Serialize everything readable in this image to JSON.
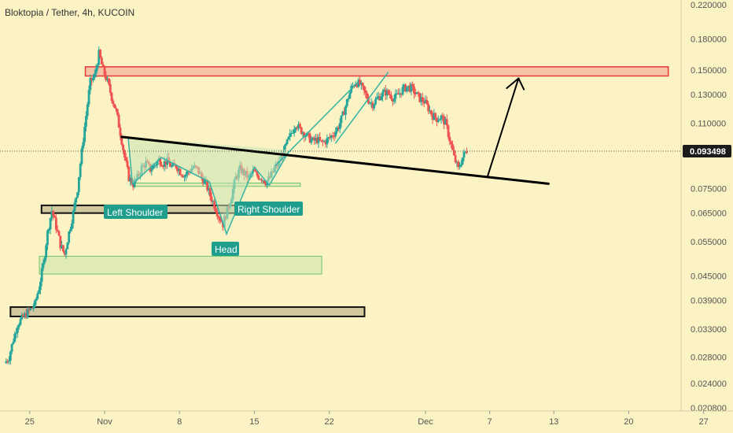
{
  "header": {
    "title": "Bloktopia / Tether, 4h, KUCOIN"
  },
  "colors": {
    "background": "#fbf3c4",
    "candle_up": "#26a69a",
    "candle_down": "#ef5350",
    "resistance_fill": "#f6c4a4",
    "resistance_stroke": "#e53935",
    "support_fill": "#dfeab4",
    "support_stroke": "#6cc46c",
    "dark_zone_fill": "#d2c89e",
    "pattern_line": "#34b3a4",
    "label_bg": "#1f9e8e"
  },
  "chart_data": {
    "type": "candlestick",
    "symbol": "Bloktopia / Tether",
    "timeframe": "4h",
    "exchange": "KUCOIN",
    "y_scale": "log",
    "ylim": [
      0.0208,
      0.22
    ],
    "y_ticks": [
      "0.220000",
      "0.180000",
      "0.150000",
      "0.130000",
      "0.110000",
      "0.093498",
      "0.075000",
      "0.065000",
      "0.055000",
      "0.045000",
      "0.039000",
      "0.033000",
      "0.028000",
      "0.024000",
      "0.020800"
    ],
    "x_ticks": [
      {
        "label": "25",
        "day": -7
      },
      {
        "label": "Nov",
        "day": 0
      },
      {
        "label": "8",
        "day": 7
      },
      {
        "label": "15",
        "day": 14
      },
      {
        "label": "22",
        "day": 21
      },
      {
        "label": "Dec",
        "day": 30
      },
      {
        "label": "7",
        "day": 36
      },
      {
        "label": "13",
        "day": 42
      },
      {
        "label": "20",
        "day": 49
      },
      {
        "label": "27",
        "day": 56
      }
    ],
    "current_price": "0.093498",
    "path": [
      [
        -9.2,
        0.027
      ],
      [
        -8.8,
        0.028
      ],
      [
        -8.4,
        0.031
      ],
      [
        -8.0,
        0.034
      ],
      [
        -7.6,
        0.035
      ],
      [
        -7.2,
        0.036
      ],
      [
        -6.8,
        0.037
      ],
      [
        -6.4,
        0.038
      ],
      [
        -6.0,
        0.042
      ],
      [
        -5.6,
        0.048
      ],
      [
        -5.2,
        0.058
      ],
      [
        -4.8,
        0.066
      ],
      [
        -4.4,
        0.06
      ],
      [
        -4.0,
        0.054
      ],
      [
        -3.6,
        0.051
      ],
      [
        -3.2,
        0.058
      ],
      [
        -2.8,
        0.065
      ],
      [
        -2.4,
        0.075
      ],
      [
        -2.0,
        0.093
      ],
      [
        -1.6,
        0.115
      ],
      [
        -1.2,
        0.14
      ],
      [
        -0.8,
        0.145
      ],
      [
        -0.4,
        0.165
      ],
      [
        0.0,
        0.15
      ],
      [
        0.4,
        0.14
      ],
      [
        0.8,
        0.128
      ],
      [
        1.2,
        0.118
      ],
      [
        1.6,
        0.104
      ],
      [
        2.0,
        0.09
      ],
      [
        2.4,
        0.08
      ],
      [
        2.8,
        0.077
      ],
      [
        3.2,
        0.08
      ],
      [
        3.6,
        0.085
      ],
      [
        4.0,
        0.087
      ],
      [
        4.4,
        0.084
      ],
      [
        4.8,
        0.086
      ],
      [
        5.2,
        0.089
      ],
      [
        5.6,
        0.087
      ],
      [
        6.0,
        0.088
      ],
      [
        6.4,
        0.085
      ],
      [
        6.8,
        0.086
      ],
      [
        7.2,
        0.083
      ],
      [
        7.6,
        0.081
      ],
      [
        8.0,
        0.083
      ],
      [
        8.4,
        0.085
      ],
      [
        8.8,
        0.084
      ],
      [
        9.2,
        0.08
      ],
      [
        9.6,
        0.077
      ],
      [
        10.0,
        0.072
      ],
      [
        10.4,
        0.068
      ],
      [
        10.8,
        0.064
      ],
      [
        11.2,
        0.061
      ],
      [
        11.6,
        0.066
      ],
      [
        12.0,
        0.072
      ],
      [
        12.4,
        0.08
      ],
      [
        12.8,
        0.084
      ],
      [
        13.2,
        0.082
      ],
      [
        13.6,
        0.08
      ],
      [
        14.0,
        0.083
      ],
      [
        14.4,
        0.081
      ],
      [
        14.8,
        0.08
      ],
      [
        15.2,
        0.078
      ],
      [
        15.6,
        0.08
      ],
      [
        16.0,
        0.084
      ],
      [
        16.4,
        0.087
      ],
      [
        16.8,
        0.092
      ],
      [
        17.2,
        0.098
      ],
      [
        17.6,
        0.104
      ],
      [
        18.0,
        0.11
      ],
      [
        18.4,
        0.106
      ],
      [
        18.8,
        0.104
      ],
      [
        19.2,
        0.101
      ],
      [
        19.6,
        0.099
      ],
      [
        20.0,
        0.1
      ],
      [
        20.4,
        0.098
      ],
      [
        20.8,
        0.099
      ],
      [
        21.2,
        0.101
      ],
      [
        21.6,
        0.104
      ],
      [
        22.0,
        0.108
      ],
      [
        22.4,
        0.115
      ],
      [
        22.8,
        0.125
      ],
      [
        23.2,
        0.135
      ],
      [
        23.6,
        0.14
      ],
      [
        24.0,
        0.138
      ],
      [
        24.4,
        0.132
      ],
      [
        24.8,
        0.126
      ],
      [
        25.2,
        0.123
      ],
      [
        25.6,
        0.127
      ],
      [
        26.0,
        0.13
      ],
      [
        26.4,
        0.132
      ],
      [
        26.8,
        0.13
      ],
      [
        27.2,
        0.127
      ],
      [
        27.6,
        0.13
      ],
      [
        28.0,
        0.134
      ],
      [
        28.4,
        0.136
      ],
      [
        28.8,
        0.135
      ],
      [
        29.2,
        0.131
      ],
      [
        29.6,
        0.127
      ],
      [
        30.0,
        0.125
      ],
      [
        30.4,
        0.12
      ],
      [
        30.8,
        0.115
      ],
      [
        31.2,
        0.113
      ],
      [
        31.6,
        0.114
      ],
      [
        32.0,
        0.11
      ],
      [
        32.4,
        0.1
      ],
      [
        32.8,
        0.09
      ],
      [
        33.2,
        0.084
      ],
      [
        33.6,
        0.09
      ],
      [
        34.0,
        0.094
      ]
    ]
  },
  "annotations": {
    "left_shoulder": "Left Shoulder",
    "head": "Head",
    "right_shoulder": "Right Shoulder"
  }
}
